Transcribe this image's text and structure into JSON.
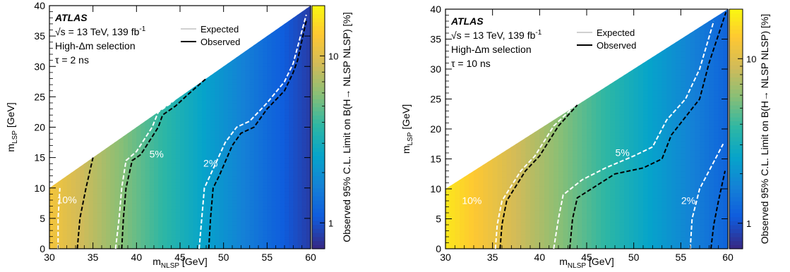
{
  "colors": {
    "colormap": [
      "#352a87",
      "#0f5cdd",
      "#1481d6",
      "#06a4ca",
      "#2eb7a4",
      "#87bf77",
      "#d1bb59",
      "#fec832",
      "#f9fb0e"
    ],
    "observed_line": "#000000",
    "expected_line": "#ffffff",
    "white_region": "#ffffff"
  },
  "chart_data": [
    {
      "type": "heatmap",
      "xlabel": "m",
      "xlabel_sub": "NLSP",
      "xlabel_unit": "[GeV]",
      "ylabel": "m",
      "ylabel_sub": "LSP",
      "ylabel_unit": "[GeV]",
      "zlabel": "Observed 95% C.L. Limit on B(H→ NLSP NLSP) [%]",
      "xlim": [
        30,
        60
      ],
      "ylim": [
        0,
        40
      ],
      "zlim": [
        0.7,
        20
      ],
      "zscale": "log",
      "x_ticks": [
        30,
        35,
        40,
        45,
        50,
        55,
        60
      ],
      "y_ticks": [
        0,
        5,
        10,
        15,
        20,
        25,
        30,
        35,
        40
      ],
      "z_ticks": [
        1,
        10
      ],
      "atlas_label": "ATLAS",
      "energy_label": "√s = 13 TeV, 139 fb",
      "energy_sup": "-1",
      "selection_label": "High-Δm selection",
      "lifetime_label": "τ = 2 ns",
      "legend": [
        {
          "label": "Expected",
          "style": "white-dashed"
        },
        {
          "label": "Observed",
          "style": "black-dashed"
        }
      ],
      "contour_labels": [
        {
          "text": "10%",
          "x": 32.0,
          "y": 7.5
        },
        {
          "text": "5%",
          "x": 42.3,
          "y": 15.0
        },
        {
          "text": "2%",
          "x": 48.5,
          "y": 13.5
        }
      ],
      "allowed_boundary": [
        [
          30,
          10
        ],
        [
          60,
          40
        ]
      ],
      "observed_contours": [
        {
          "level": "10%",
          "points": [
            [
              33.2,
              0
            ],
            [
              33.5,
              5
            ],
            [
              34.2,
              10
            ],
            [
              35.0,
              15.0
            ]
          ]
        },
        {
          "level": "5%",
          "points": [
            [
              38.3,
              0
            ],
            [
              38.5,
              5
            ],
            [
              38.8,
              10
            ],
            [
              39.5,
              14.5
            ],
            [
              40.5,
              15.5
            ],
            [
              42.5,
              20
            ],
            [
              43.0,
              22
            ],
            [
              44.5,
              23.5
            ],
            [
              46.0,
              25.5
            ],
            [
              48.0,
              28.0
            ]
          ]
        },
        {
          "level": "2%",
          "points": [
            [
              48.3,
              0
            ],
            [
              48.5,
              5
            ],
            [
              48.8,
              10
            ],
            [
              49.5,
              12
            ],
            [
              51.0,
              17
            ],
            [
              52.0,
              19
            ],
            [
              53.5,
              20
            ],
            [
              55.0,
              23
            ],
            [
              57.0,
              26
            ],
            [
              58.0,
              29
            ],
            [
              58.5,
              31
            ],
            [
              59.5,
              37.5
            ]
          ]
        }
      ],
      "expected_contours": [
        {
          "level": "10%",
          "points": [
            [
              31.0,
              0
            ],
            [
              31.0,
              5
            ],
            [
              31.2,
              10
            ]
          ]
        },
        {
          "level": "5%",
          "points": [
            [
              37.6,
              0
            ],
            [
              38.0,
              5
            ],
            [
              38.3,
              10
            ],
            [
              38.8,
              14.5
            ],
            [
              40.0,
              16.0
            ],
            [
              41.8,
              20.0
            ],
            [
              42.5,
              22.5
            ],
            [
              44.0,
              24.0
            ],
            [
              45.5,
              26.0
            ],
            [
              47.5,
              28.5
            ]
          ]
        },
        {
          "level": "2%",
          "points": [
            [
              47.2,
              0
            ],
            [
              47.5,
              5
            ],
            [
              47.8,
              10
            ],
            [
              48.6,
              12.5
            ],
            [
              50.2,
              17.5
            ],
            [
              51.5,
              20.0
            ],
            [
              53.0,
              21.0
            ],
            [
              55.0,
              24.0
            ],
            [
              57.0,
              27.5
            ],
            [
              58.0,
              30.5
            ],
            [
              59.5,
              38.5
            ]
          ]
        }
      ]
    },
    {
      "type": "heatmap",
      "xlabel": "m",
      "xlabel_sub": "NLSP",
      "xlabel_unit": "[GeV]",
      "ylabel": "m",
      "ylabel_sub": "LSP",
      "ylabel_unit": "[GeV]",
      "zlabel": "Observed 95% C.L. Limit on B(H→ NLSP NLSP) [%]",
      "xlim": [
        30,
        60
      ],
      "ylim": [
        0,
        40
      ],
      "zlim": [
        0.7,
        20
      ],
      "zscale": "log",
      "x_ticks": [
        30,
        35,
        40,
        45,
        50,
        55,
        60
      ],
      "y_ticks": [
        0,
        5,
        10,
        15,
        20,
        25,
        30,
        35,
        40
      ],
      "z_ticks": [
        1,
        10
      ],
      "atlas_label": "ATLAS",
      "energy_label": "√s = 13 TeV, 139 fb",
      "energy_sup": "-1",
      "selection_label": "High-Δm selection",
      "lifetime_label": "τ = 10 ns",
      "legend": [
        {
          "label": "Expected",
          "style": "white-dashed"
        },
        {
          "label": "Observed",
          "style": "black-dashed"
        }
      ],
      "contour_labels": [
        {
          "text": "10%",
          "x": 32.8,
          "y": 7.5
        },
        {
          "text": "5%",
          "x": 48.8,
          "y": 15.5
        },
        {
          "text": "2%",
          "x": 55.8,
          "y": 7.5
        }
      ],
      "allowed_boundary": [
        [
          30,
          10
        ],
        [
          60,
          40
        ]
      ],
      "observed_contours": [
        {
          "level": "10%",
          "points": [
            [
              35.8,
              0
            ],
            [
              36.0,
              4
            ],
            [
              36.5,
              8
            ],
            [
              37.5,
              10.5
            ],
            [
              38.5,
              13.0
            ],
            [
              40.0,
              15.5
            ],
            [
              42.0,
              20.5
            ],
            [
              44.0,
              24.0
            ]
          ]
        },
        {
          "level": "5%",
          "points": [
            [
              43.2,
              0
            ],
            [
              43.5,
              5
            ],
            [
              44.0,
              8.5
            ],
            [
              46.0,
              10.5
            ],
            [
              48.0,
              12.5
            ],
            [
              51.0,
              13.5
            ],
            [
              53.0,
              15.0
            ],
            [
              54.0,
              19.0
            ],
            [
              55.5,
              22.0
            ],
            [
              57.0,
              25.0
            ],
            [
              58.0,
              31.0
            ],
            [
              59.8,
              39.5
            ]
          ]
        },
        {
          "level": "2%",
          "points": [
            [
              58.2,
              0
            ],
            [
              58.5,
              4
            ],
            [
              59.0,
              8
            ],
            [
              59.7,
              13
            ]
          ]
        }
      ],
      "expected_contours": [
        {
          "level": "10%",
          "points": [
            [
              35.3,
              0
            ],
            [
              35.5,
              4
            ],
            [
              36.0,
              8
            ],
            [
              37.0,
              10.5
            ],
            [
              38.0,
              13.0
            ],
            [
              39.5,
              15.5
            ],
            [
              41.5,
              20.5
            ],
            [
              43.5,
              23.5
            ]
          ]
        },
        {
          "level": "5%",
          "points": [
            [
              41.5,
              0
            ],
            [
              42.0,
              5
            ],
            [
              42.5,
              9.0
            ],
            [
              44.5,
              11.5
            ],
            [
              47.0,
              13.5
            ],
            [
              50.0,
              15.5
            ],
            [
              52.0,
              17.0
            ],
            [
              53.5,
              21.5
            ],
            [
              55.5,
              25.0
            ],
            [
              57.0,
              30.0
            ],
            [
              58.5,
              38.0
            ]
          ]
        },
        {
          "level": "2%",
          "points": [
            [
              56.0,
              0
            ],
            [
              56.2,
              5
            ],
            [
              57.0,
              10
            ],
            [
              58.5,
              14.5
            ],
            [
              59.5,
              17.5
            ]
          ]
        }
      ]
    }
  ]
}
